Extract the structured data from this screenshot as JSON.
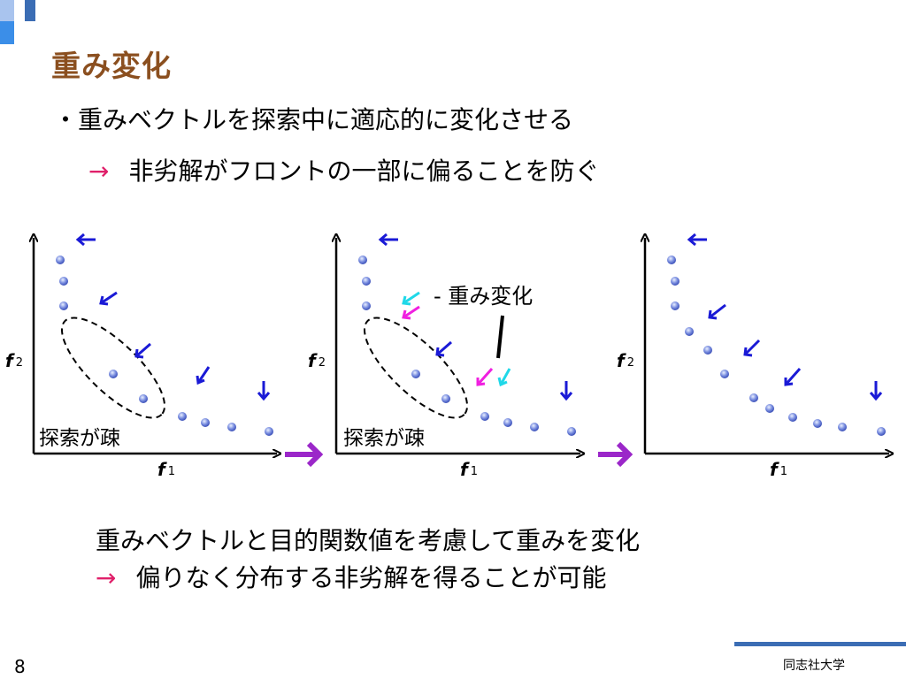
{
  "title": "重み変化",
  "bullet1": "・重みベクトルを探索中に適応的に変化させる",
  "arrow_glyph": "→",
  "line2": "非劣解がフロントの一部に偏ることを防ぐ",
  "diagram": {
    "panels": [
      {
        "y_axis": "f",
        "y_sub": "2",
        "x_axis": "f",
        "x_sub": "1",
        "annotation": "探索が疎"
      },
      {
        "y_axis": "f",
        "y_sub": "2",
        "x_axis": "f",
        "x_sub": "1",
        "annotation": "探索が疎",
        "callout": "重み変化"
      },
      {
        "y_axis": "f",
        "y_sub": "2",
        "x_axis": "f",
        "x_sub": "1"
      }
    ]
  },
  "bottom_line1": "重みベクトルと目的関数値を考慮して重みを変化",
  "bottom_line2": "偏りなく分布する非劣解を得ることが可能",
  "page_number": "8",
  "org": "同志社大学",
  "colors": {
    "title": "#8b4f1f",
    "arrow_red": "#e0206a",
    "blue_arrow": "#1a1ad6",
    "cyan_arrow": "#1fd8e8",
    "magenta_arrow": "#f020e0",
    "transition_arrow": "#9b27c9",
    "footer_rule": "#3b6db4"
  }
}
